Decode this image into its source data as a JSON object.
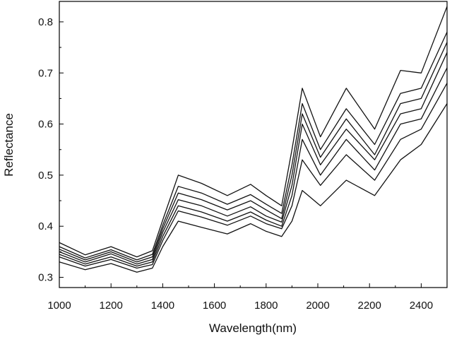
{
  "chart_data": {
    "type": "line",
    "title": "",
    "xlabel": "Wavelength(nm)",
    "ylabel": "Reflectance",
    "xlim": [
      1000,
      2500
    ],
    "ylim": [
      0.28,
      0.84
    ],
    "x_ticks": [
      1000,
      1200,
      1400,
      1600,
      1800,
      2000,
      2200,
      2400
    ],
    "x_tick_labels": [
      "1000",
      "1200",
      "1400",
      "1600",
      "1800",
      "2000",
      "2200",
      "2400"
    ],
    "y_ticks": [
      0.3,
      0.4,
      0.5,
      0.6,
      0.7,
      0.8
    ],
    "y_tick_labels": [
      "0.3",
      "0.4",
      "0.5",
      "0.6",
      "0.7",
      "0.8"
    ],
    "grid": false,
    "legend": "none",
    "line_color": "#111111",
    "x": [
      1000,
      1100,
      1200,
      1300,
      1360,
      1400,
      1460,
      1550,
      1650,
      1740,
      1800,
      1860,
      1900,
      1940,
      2010,
      2110,
      2220,
      2320,
      2400,
      2500
    ],
    "series": [
      {
        "values": [
          0.33,
          0.315,
          0.327,
          0.31,
          0.318,
          0.36,
          0.41,
          0.398,
          0.385,
          0.405,
          0.39,
          0.38,
          0.41,
          0.47,
          0.44,
          0.49,
          0.46,
          0.53,
          0.56,
          0.64
        ]
      },
      {
        "values": [
          0.34,
          0.322,
          0.335,
          0.318,
          0.325,
          0.372,
          0.43,
          0.418,
          0.402,
          0.42,
          0.405,
          0.395,
          0.44,
          0.53,
          0.48,
          0.54,
          0.49,
          0.57,
          0.59,
          0.68
        ]
      },
      {
        "values": [
          0.345,
          0.326,
          0.34,
          0.322,
          0.33,
          0.38,
          0.44,
          0.428,
          0.41,
          0.428,
          0.412,
          0.4,
          0.46,
          0.57,
          0.5,
          0.57,
          0.51,
          0.6,
          0.61,
          0.71
        ]
      },
      {
        "values": [
          0.35,
          0.33,
          0.346,
          0.326,
          0.335,
          0.388,
          0.452,
          0.44,
          0.42,
          0.438,
          0.42,
          0.408,
          0.48,
          0.6,
          0.52,
          0.59,
          0.53,
          0.62,
          0.63,
          0.74
        ]
      },
      {
        "values": [
          0.355,
          0.334,
          0.35,
          0.33,
          0.34,
          0.395,
          0.465,
          0.452,
          0.432,
          0.45,
          0.432,
          0.415,
          0.5,
          0.62,
          0.535,
          0.61,
          0.54,
          0.64,
          0.65,
          0.76
        ]
      },
      {
        "values": [
          0.36,
          0.338,
          0.354,
          0.334,
          0.345,
          0.402,
          0.478,
          0.465,
          0.443,
          0.462,
          0.443,
          0.425,
          0.52,
          0.64,
          0.55,
          0.63,
          0.56,
          0.66,
          0.67,
          0.78
        ]
      },
      {
        "values": [
          0.368,
          0.344,
          0.36,
          0.34,
          0.352,
          0.412,
          0.5,
          0.484,
          0.46,
          0.482,
          0.46,
          0.44,
          0.55,
          0.67,
          0.575,
          0.67,
          0.59,
          0.705,
          0.7,
          0.83
        ]
      }
    ]
  }
}
